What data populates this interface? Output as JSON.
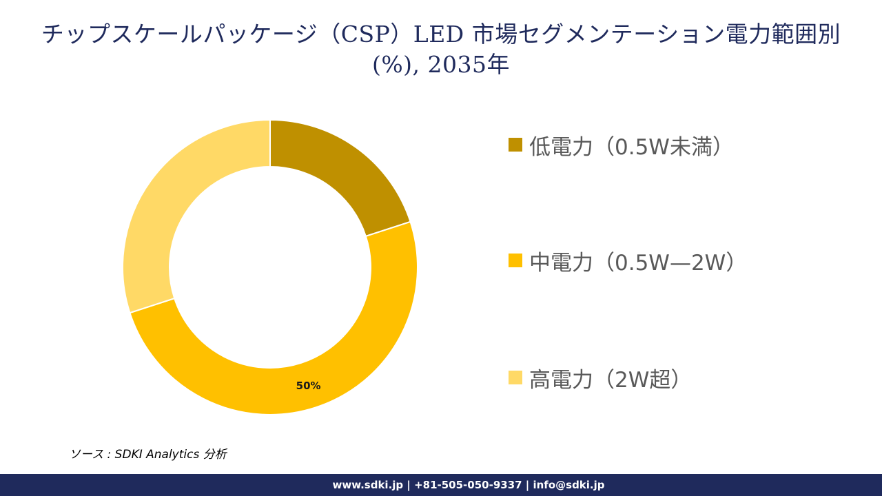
{
  "title": "チップスケールパッケージ（CSP）LED 市場セグメンテーション電力範囲別 (%), 2035年",
  "chart_data": {
    "type": "pie",
    "donut": true,
    "categories": [
      "低電力（0.5W未満）",
      "中電力（0.5W—2W）",
      "高電力（2W超）"
    ],
    "values": [
      20,
      50,
      30
    ],
    "colors": [
      "#bf9000",
      "#ffc000",
      "#ffd966"
    ],
    "data_labels": [
      "",
      "50%",
      ""
    ],
    "legend_placement": "right"
  },
  "source": "ソース : SDKI Analytics 分析",
  "footer": "www.sdki.jp | +81-505-050-9337 | info@sdki.jp"
}
